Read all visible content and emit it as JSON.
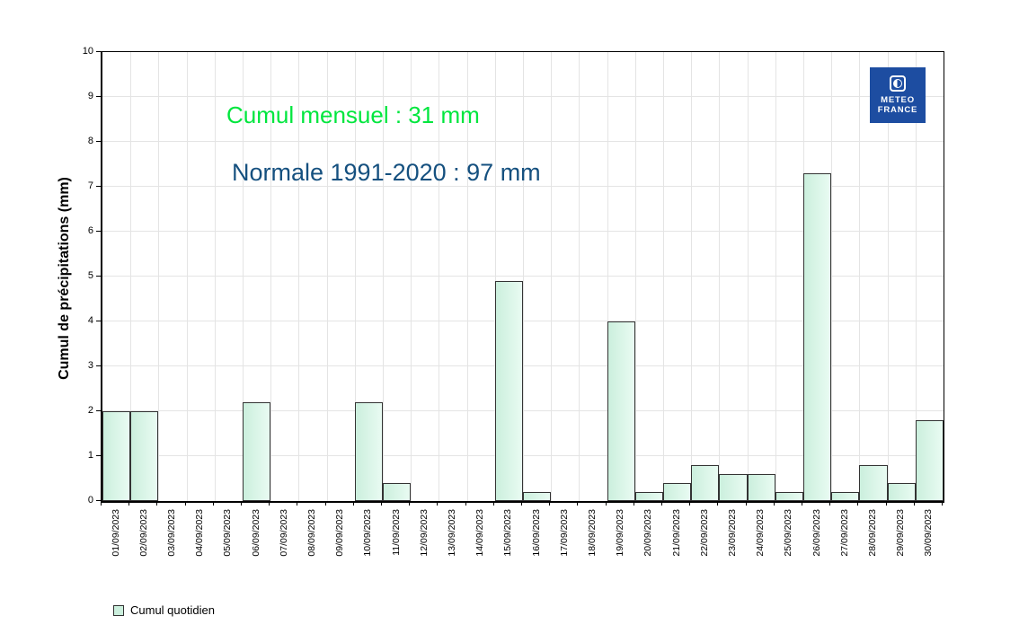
{
  "annotations": {
    "monthly_total": "Cumul mensuel : 31 mm",
    "normal": "Normale 1991-2020 : 97 mm"
  },
  "legend": {
    "daily_label": "Cumul quotidien"
  },
  "logo": {
    "line1": "METEO",
    "line2": "FRANCE"
  },
  "colors": {
    "monthly_total_text": "#00e63e",
    "normal_text": "#15507f",
    "bar_fill_left": "#cbefdd",
    "bar_fill_right": "#e9fbf2",
    "bar_border": "#333333",
    "gridline": "#e4e4e4",
    "axis": "#000000",
    "logo_blue": "#1d4da1"
  },
  "chart_data": {
    "type": "bar",
    "title": "",
    "xlabel": "",
    "ylabel": "Cumul de précipitations (mm)",
    "ylim": [
      0,
      10
    ],
    "yticks": [
      0,
      1,
      2,
      3,
      4,
      5,
      6,
      7,
      8,
      9,
      10
    ],
    "grid": true,
    "legend_position": "bottom-left",
    "series_name": "Cumul quotidien",
    "categories": [
      "01/09/2023",
      "02/09/2023",
      "03/09/2023",
      "04/09/2023",
      "05/09/2023",
      "06/09/2023",
      "07/09/2023",
      "08/09/2023",
      "09/09/2023",
      "10/09/2023",
      "11/09/2023",
      "12/09/2023",
      "13/09/2023",
      "14/09/2023",
      "15/09/2023",
      "16/09/2023",
      "17/09/2023",
      "18/09/2023",
      "19/09/2023",
      "20/09/2023",
      "21/09/2023",
      "22/09/2023",
      "23/09/2023",
      "24/09/2023",
      "25/09/2023",
      "26/09/2023",
      "27/09/2023",
      "28/09/2023",
      "29/09/2023",
      "30/09/2023"
    ],
    "values": [
      2.0,
      2.0,
      0,
      0,
      0,
      2.2,
      0,
      0,
      0,
      2.2,
      0.4,
      0,
      0,
      0,
      4.9,
      0.2,
      0,
      0,
      4.0,
      0.2,
      0.4,
      0.8,
      0.6,
      0.6,
      0.2,
      7.3,
      0.2,
      0.8,
      0.4,
      1.8
    ]
  }
}
